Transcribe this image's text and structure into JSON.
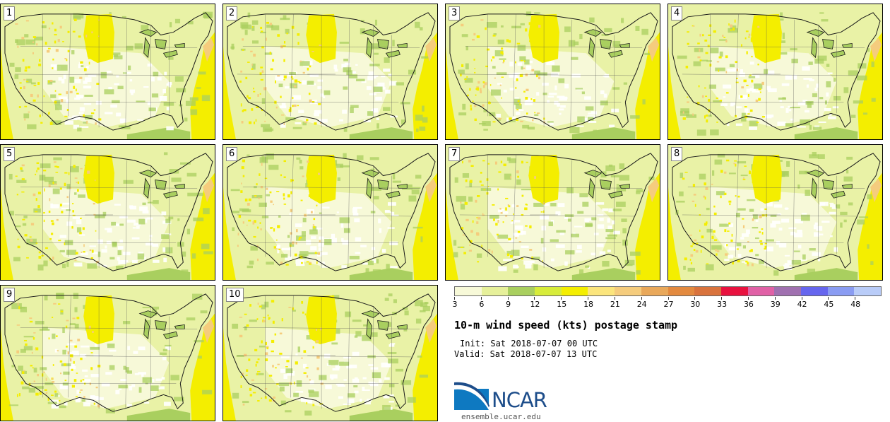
{
  "figure": {
    "title": "10-m wind speed (kts) postage stamp",
    "init": "Init: Sat 2018-07-07 00 UTC",
    "valid": "Valid: Sat 2018-07-07 13 UTC",
    "logo_text": "NCAR",
    "site": "ensemble.ucar.edu"
  },
  "panels": [
    {
      "label": "1"
    },
    {
      "label": "2"
    },
    {
      "label": "3"
    },
    {
      "label": "4"
    },
    {
      "label": "5"
    },
    {
      "label": "6"
    },
    {
      "label": "7"
    },
    {
      "label": "8"
    },
    {
      "label": "9"
    },
    {
      "label": "10"
    }
  ],
  "colorbar": {
    "ticks": [
      "3",
      "6",
      "9",
      "12",
      "15",
      "18",
      "21",
      "24",
      "27",
      "30",
      "33",
      "36",
      "39",
      "42",
      "45",
      "48"
    ],
    "colors": [
      "#f7f9d8",
      "#e6f09a",
      "#a9cf5f",
      "#d7ec3a",
      "#f4ee00",
      "#fbe57d",
      "#f5cc7d",
      "#e9a85a",
      "#e38a3f",
      "#d9733d",
      "#e8123f",
      "#e061a6",
      "#a070b0",
      "#6666ee",
      "#8a9cf2",
      "#b9ccf8"
    ],
    "units": "kts"
  },
  "map_colors": {
    "base": "#e9f2a6",
    "light": "#f7f9d8",
    "white": "#ffffff",
    "green": "#a9cf5f",
    "yellow": "#f4ee00",
    "orange": "#f5cc7d",
    "line": "#1a1a1a"
  }
}
